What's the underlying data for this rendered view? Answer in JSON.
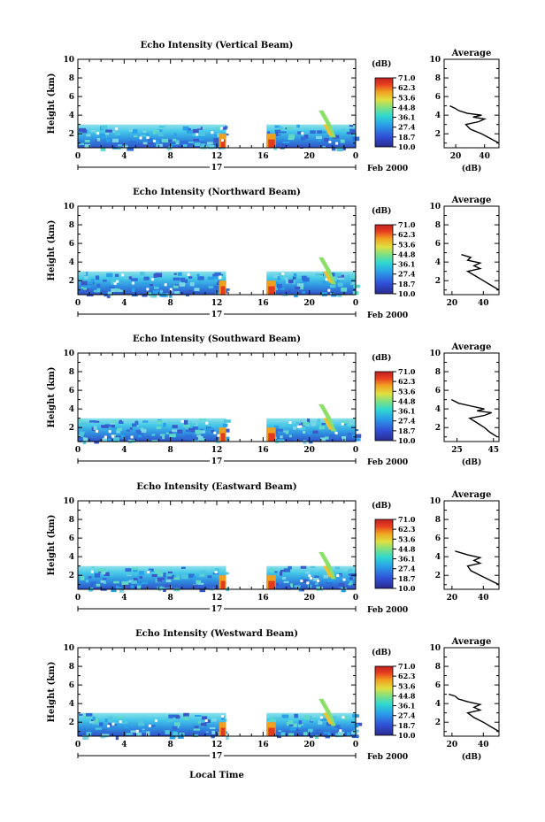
{
  "figure": {
    "xlabel": "Local Time",
    "date_label": "Feb 2000",
    "day_label": "17",
    "colorbar_unit": "(dB)",
    "colorbar_ticks": [
      "71.0",
      "62.3",
      "53.6",
      "44.8",
      "36.1",
      "27.4",
      "18.7",
      "10.0"
    ]
  },
  "chart_data": [
    {
      "type": "heatmap",
      "title": "Echo Intensity (Vertical Beam)",
      "xlabel": "",
      "ylabel": "Height (km)",
      "x_ticks": [
        "0",
        "4",
        "8",
        "12",
        "16",
        "20",
        "0"
      ],
      "xlim": [
        0,
        24
      ],
      "y_ticks": [
        "2",
        "4",
        "6",
        "8",
        "10"
      ],
      "ylim": [
        0.5,
        10
      ],
      "data_gap_hours": [
        12.8,
        16.3
      ],
      "echo_top_km": 3.0,
      "profile": {
        "title": "Average",
        "xlabel": "(dB)",
        "ylabel": "",
        "x_ticks": [
          "20",
          "40"
        ],
        "xlim": [
          12,
          50
        ],
        "ylim": [
          0.5,
          10
        ],
        "height_km": [
          1.0,
          1.5,
          2.0,
          2.5,
          3.0,
          3.3,
          3.6,
          3.8,
          4.0,
          4.2,
          4.5,
          4.7,
          5.0
        ],
        "db": [
          50,
          44,
          38,
          30,
          27,
          36,
          40,
          32,
          38,
          28,
          22,
          20,
          16
        ]
      }
    },
    {
      "type": "heatmap",
      "title": "Echo Intensity (Northward Beam)",
      "xlabel": "",
      "ylabel": "Height (km)",
      "x_ticks": [
        "0",
        "4",
        "8",
        "12",
        "16",
        "20",
        "0"
      ],
      "xlim": [
        0,
        24
      ],
      "y_ticks": [
        "2",
        "4",
        "6",
        "8",
        "10"
      ],
      "ylim": [
        0.5,
        10
      ],
      "data_gap_hours": [
        12.8,
        16.3
      ],
      "echo_top_km": 3.0,
      "profile": {
        "title": "Average",
        "xlabel": "",
        "ylabel": "",
        "x_ticks": [
          "20",
          "40"
        ],
        "xlim": [
          15,
          50
        ],
        "ylim": [
          0.5,
          10
        ],
        "height_km": [
          1.0,
          1.5,
          2.0,
          2.5,
          3.0,
          3.3,
          3.6,
          3.9,
          4.2,
          4.5,
          4.8
        ],
        "db": [
          50,
          45,
          40,
          35,
          30,
          38,
          34,
          38,
          30,
          32,
          26
        ]
      }
    },
    {
      "type": "heatmap",
      "title": "Echo Intensity (Southward Beam)",
      "xlabel": "",
      "ylabel": "Height (km)",
      "x_ticks": [
        "0",
        "4",
        "8",
        "12",
        "16",
        "20",
        "0"
      ],
      "xlim": [
        0,
        24
      ],
      "y_ticks": [
        "2",
        "4",
        "6",
        "8",
        "10"
      ],
      "ylim": [
        0.5,
        10
      ],
      "data_gap_hours": [
        12.8,
        16.3
      ],
      "echo_top_km": 3.0,
      "profile": {
        "title": "Average",
        "xlabel": "(dB)",
        "ylabel": "",
        "x_ticks": [
          "25",
          "45"
        ],
        "xlim": [
          18,
          48
        ],
        "ylim": [
          0.5,
          10
        ],
        "height_km": [
          1.0,
          1.5,
          2.0,
          2.5,
          3.0,
          3.3,
          3.6,
          3.8,
          4.0,
          4.3,
          4.6,
          5.0
        ],
        "db": [
          47,
          43,
          40,
          36,
          32,
          40,
          44,
          36,
          40,
          33,
          26,
          22
        ]
      }
    },
    {
      "type": "heatmap",
      "title": "Echo Intensity (Eastward Beam)",
      "xlabel": "",
      "ylabel": "Height (km)",
      "x_ticks": [
        "0",
        "4",
        "8",
        "12",
        "16",
        "20",
        "0"
      ],
      "xlim": [
        0,
        24
      ],
      "y_ticks": [
        "2",
        "4",
        "6",
        "8",
        "10"
      ],
      "ylim": [
        0.5,
        10
      ],
      "data_gap_hours": [
        12.8,
        16.3
      ],
      "echo_top_km": 3.0,
      "profile": {
        "title": "Average",
        "xlabel": "",
        "ylabel": "",
        "x_ticks": [
          "20",
          "40"
        ],
        "xlim": [
          15,
          50
        ],
        "ylim": [
          0.5,
          10
        ],
        "height_km": [
          1.0,
          1.5,
          2.0,
          2.5,
          3.0,
          3.3,
          3.6,
          3.9,
          4.2,
          4.6
        ],
        "db": [
          50,
          44,
          38,
          32,
          30,
          38,
          34,
          38,
          30,
          22
        ]
      }
    },
    {
      "type": "heatmap",
      "title": "Echo Intensity (Westward Beam)",
      "xlabel": "Local Time",
      "ylabel": "Height (km)",
      "x_ticks": [
        "0",
        "4",
        "8",
        "12",
        "16",
        "20",
        "0"
      ],
      "xlim": [
        0,
        24
      ],
      "y_ticks": [
        "2",
        "4",
        "6",
        "8",
        "10"
      ],
      "ylim": [
        0.5,
        10
      ],
      "data_gap_hours": [
        12.8,
        16.3
      ],
      "echo_top_km": 3.0,
      "profile": {
        "title": "Average",
        "xlabel": "(dB)",
        "ylabel": "",
        "x_ticks": [
          "20",
          "40"
        ],
        "xlim": [
          15,
          50
        ],
        "ylim": [
          0.5,
          10
        ],
        "height_km": [
          1.0,
          1.5,
          2.0,
          2.5,
          3.0,
          3.3,
          3.6,
          3.9,
          4.2,
          4.5,
          4.8,
          5.0
        ],
        "db": [
          50,
          45,
          40,
          34,
          30,
          38,
          34,
          38,
          30,
          24,
          22,
          18
        ]
      }
    }
  ]
}
